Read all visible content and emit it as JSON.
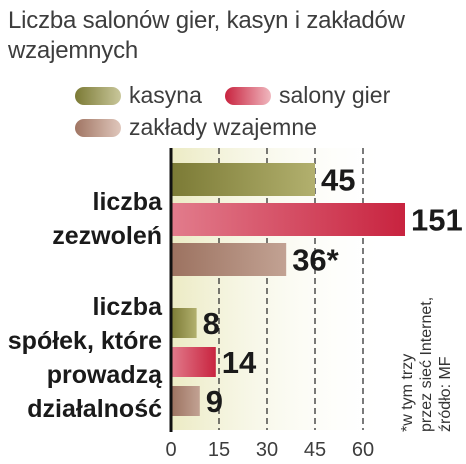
{
  "title": "Liczba salonów gier, kasyn i zakładów wzajemnych",
  "legend": [
    {
      "label": "kasyna",
      "color": "#7b7a35"
    },
    {
      "label": "salony gier",
      "color": "#c8233f"
    },
    {
      "label": "zakłady wzajemne",
      "color": "#a07563"
    }
  ],
  "footnote": [
    "*w tym trzy",
    "przez sieć Internet,",
    "źródło: MF"
  ],
  "chart_data": {
    "type": "bar",
    "orientation": "horizontal",
    "groups": [
      {
        "label_lines": [
          "liczba",
          "zezwoleń"
        ],
        "values": [
          45,
          151,
          36
        ],
        "value_labels": [
          "45",
          "151",
          "36*"
        ]
      },
      {
        "label_lines": [
          "liczba",
          "spółek, które",
          "prowadzą",
          "działalność"
        ],
        "values": [
          8,
          14,
          9
        ],
        "value_labels": [
          "8",
          "14",
          "9"
        ]
      }
    ],
    "series": [
      {
        "name": "kasyna",
        "color": "#7b7a35"
      },
      {
        "name": "salony gier",
        "color": "#c8233f"
      },
      {
        "name": "zakłady wzajemne",
        "color": "#a07563"
      }
    ],
    "x_ticks": [
      0,
      15,
      30,
      45,
      60
    ],
    "axis_break": true,
    "grid": "dashed vertical"
  }
}
